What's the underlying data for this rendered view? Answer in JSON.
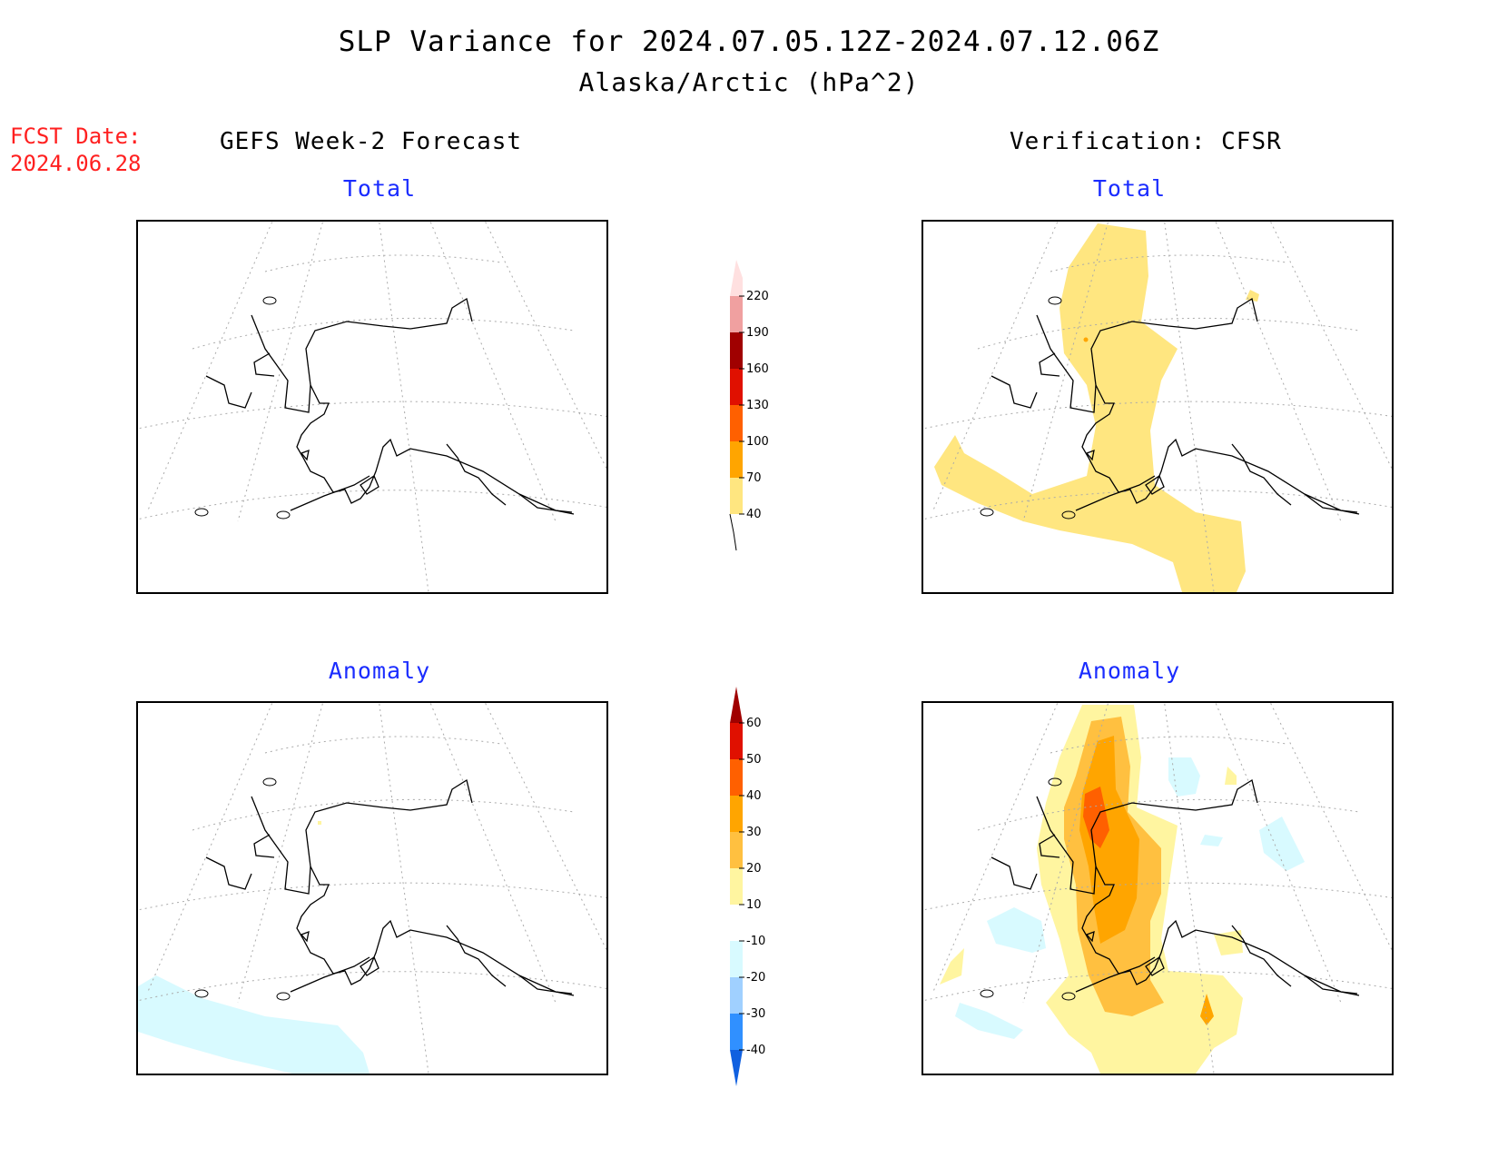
{
  "title": "SLP Variance for 2024.07.05.12Z-2024.07.12.06Z",
  "subtitle": "Alaska/Arctic (hPa^2)",
  "fcst_date": "FCST Date:\n2024.06.28",
  "left_column": "GEFS Week-2 Forecast",
  "right_column": "Verification: CFSR",
  "panels": {
    "forecast_total": "Total",
    "verif_total": "Total",
    "forecast_anomaly": "Anomaly",
    "verif_anomaly": "Anomaly"
  },
  "total_colorbar": {
    "levels": [
      "40",
      "70",
      "100",
      "130",
      "160",
      "190",
      "220"
    ],
    "colors": [
      "#ffe680",
      "#ffa500",
      "#ff6000",
      "#e01000",
      "#a00000",
      "#f0a0a0",
      "#ffe0e0"
    ]
  },
  "anomaly_colorbar": {
    "levels": [
      "60",
      "50",
      "40",
      "30",
      "20",
      "10",
      "-10",
      "-20",
      "-30",
      "-40"
    ],
    "colors": [
      "#a00000",
      "#e01000",
      "#ff6000",
      "#ffa500",
      "#ffc040",
      "#fff5a0",
      "#ffffff",
      "#d8faff",
      "#a0d0ff",
      "#3090ff",
      "#1060e0"
    ]
  }
}
